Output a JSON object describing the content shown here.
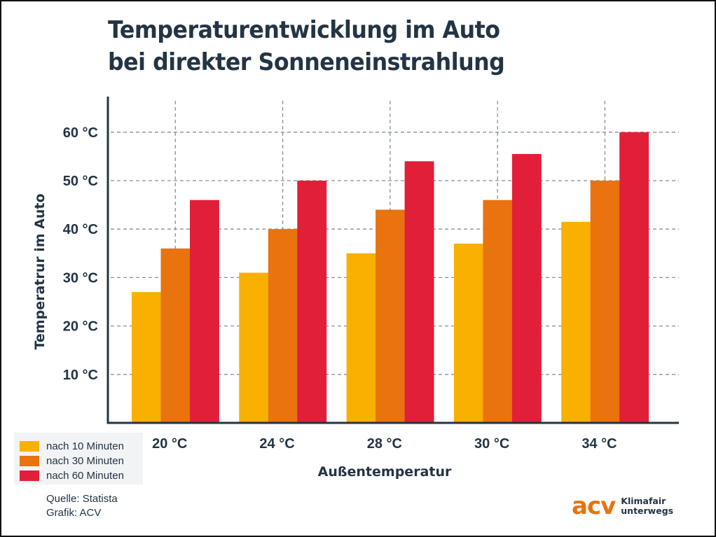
{
  "title_lines": [
    "Temperaturentwicklung im Auto",
    "bei direkter Sonneneinstrahlung"
  ],
  "chart_data": {
    "type": "bar",
    "title": "Temperaturentwicklung im Auto bei direkter Sonneneinstrahlung",
    "xlabel": "Außentemperatur",
    "ylabel": "Temperatrur im Auto",
    "categories": [
      "20 °C",
      "24 °C",
      "28 °C",
      "30 °C",
      "34 °C"
    ],
    "series": [
      {
        "name": "nach 10 Minuten",
        "color": "#F9B000",
        "values": [
          27,
          31,
          35,
          37,
          41.5
        ]
      },
      {
        "name": "nach 30 Minuten",
        "color": "#E8730F",
        "values": [
          36,
          40,
          44,
          46,
          50
        ]
      },
      {
        "name": "nach 60 Minuten",
        "color": "#E21F38",
        "values": [
          46,
          50,
          54,
          55.5,
          60
        ]
      }
    ],
    "yticks": [
      10,
      20,
      30,
      40,
      50,
      60
    ],
    "ytick_labels": [
      "10 °C",
      "20 °C",
      "30 °C",
      "40 °C",
      "50 °C",
      "60 °C"
    ],
    "ylim": [
      0,
      67
    ],
    "grid": true,
    "legend_position": "bottom-left"
  },
  "source": {
    "quelle": "Quelle: Statista",
    "grafik": "Grafik: ACV"
  },
  "logo": {
    "mark": "acv",
    "line1": "Klimafair",
    "line2": "unterwegs",
    "color": "#E8730F"
  },
  "colors": {
    "text": "#233445",
    "grid": "#8a9099",
    "axis": "#233445"
  }
}
